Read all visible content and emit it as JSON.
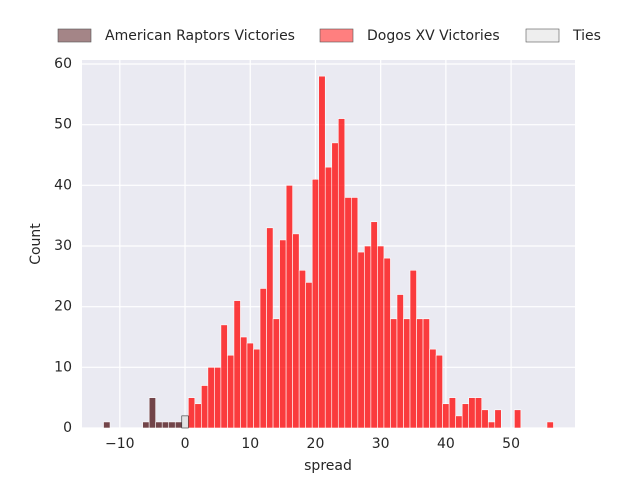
{
  "chart_data": {
    "type": "histogram",
    "x_label": "spread",
    "y_label": "Count",
    "xlim": [
      -15.8,
      59.8
    ],
    "ylim": [
      0,
      60.66
    ],
    "xticks": [
      {
        "value": -10,
        "label": "−10"
      },
      0,
      10,
      20,
      30,
      40,
      50
    ],
    "yticks": [
      0,
      10,
      20,
      30,
      40,
      50,
      60
    ],
    "grid": true,
    "legend": "top",
    "series": [
      {
        "name": "American Raptors Victories",
        "color": "#4a0c10",
        "bins": [
          -12.5,
          -11.5,
          -10.5,
          -9.5,
          -8.5,
          -7.5,
          -6.5,
          -5.5,
          -4.5,
          -3.5,
          -2.5,
          -1.5,
          -0.5
        ],
        "values": [
          1,
          0,
          0,
          0,
          0,
          0,
          1,
          5,
          1,
          1,
          1,
          1
        ]
      },
      {
        "name": "Dogos XV Victories",
        "color": "#ff0000",
        "bins": [
          0.5,
          1.5,
          2.5,
          3.5,
          4.5,
          5.5,
          6.5,
          7.5,
          8.5,
          9.5,
          10.5,
          11.5,
          12.5,
          13.5,
          14.5,
          15.5,
          16.5,
          17.5,
          18.5,
          19.5,
          20.5,
          21.5,
          22.5,
          23.5,
          24.5,
          25.5,
          26.5,
          27.5,
          28.5,
          29.5,
          30.5,
          31.5,
          32.5,
          33.5,
          34.5,
          35.5,
          36.5,
          37.5,
          38.5,
          39.5,
          40.5,
          41.5,
          42.5,
          43.5,
          44.5,
          45.5,
          46.5,
          47.5,
          48.5,
          49.5,
          50.5,
          51.5,
          52.5,
          53.5,
          54.5,
          55.5,
          56.5
        ],
        "values": [
          5,
          4,
          7,
          10,
          10,
          17,
          12,
          21,
          15,
          14,
          13,
          23,
          33,
          18,
          31,
          40,
          32,
          26,
          24,
          41,
          58,
          43,
          47,
          51,
          38,
          38,
          29,
          30,
          34,
          30,
          28,
          18,
          22,
          18,
          26,
          18,
          18,
          13,
          12,
          4,
          5,
          2,
          4,
          5,
          5,
          3,
          1,
          3,
          0,
          0,
          3,
          0,
          0,
          0,
          0,
          1
        ]
      },
      {
        "name": "Ties",
        "color": "#dddddd",
        "bins": [
          -0.5,
          0.5
        ],
        "values": [
          2
        ]
      }
    ]
  }
}
